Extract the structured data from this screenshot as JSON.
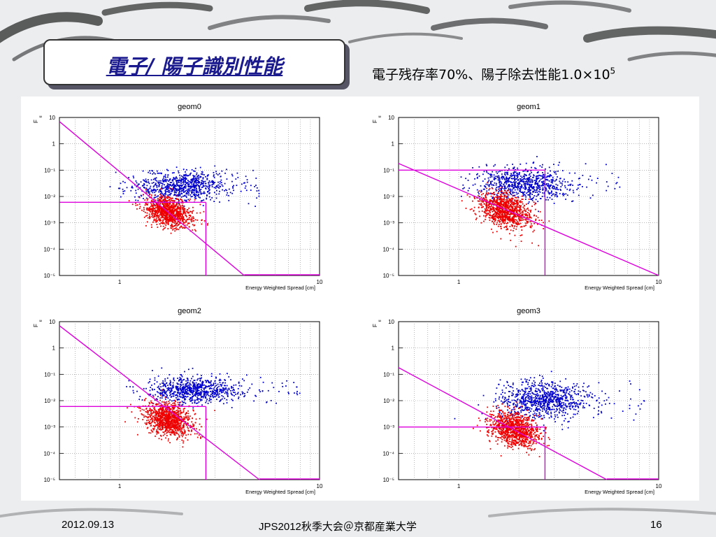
{
  "slide": {
    "title": "電子/ 陽子識別性能",
    "subtitle_main": "電子残存率70%、陽子除去性能1.0×10",
    "subtitle_exp": "5",
    "footer_date": "2012.09.13",
    "footer_event": "JPS2012秋季大会＠京都産業大学",
    "footer_page": "16"
  },
  "colors": {
    "electron": "#ee0000",
    "proton": "#0000cc",
    "cut_line": "#dd00dd",
    "title": "#1a1a8e"
  },
  "chart_data": [
    {
      "type": "scatter",
      "title": "geom0",
      "xlabel": "Energy Weighted Spread [cm]",
      "ylabel": "F",
      "ylabel_sub": "tl",
      "xscale": "log",
      "yscale": "log",
      "xlim": [
        0.5,
        10
      ],
      "ylim": [
        1e-05,
        10
      ],
      "x_tick_labels": [
        "1",
        "10"
      ],
      "y_tick_labels": [
        "10",
        "1",
        "10⁻¹",
        "10⁻²",
        "10⁻³",
        "10⁻⁴",
        "10⁻⁵"
      ],
      "grid": true,
      "series": [
        {
          "color": "#0000cc",
          "x_center": 2.0,
          "y_center": 0.025,
          "x_spread": 0.22,
          "y_spread": 0.28,
          "n": 800,
          "tail_x_max": 5.0
        },
        {
          "color": "#ee0000",
          "x_center": 1.75,
          "y_center": 0.0025,
          "x_spread": 0.12,
          "y_spread": 0.28,
          "n": 1000,
          "tail_x_max": 2.2
        }
      ],
      "cut_line": {
        "x1": 0.5,
        "y1": 7,
        "x2": 4.2,
        "y2": 1e-05
      },
      "cut_line_tail": {
        "x1": 4.2,
        "y1": 1e-05,
        "x2": 10,
        "y2": 1e-05
      },
      "cut_box": {
        "x_max": 2.7,
        "y_cut": 0.006
      }
    },
    {
      "type": "scatter",
      "title": "geom1",
      "xlabel": "Energy Weighted Spread [cm]",
      "ylabel": "F",
      "ylabel_sub": "tl",
      "xscale": "log",
      "yscale": "log",
      "xlim": [
        0.5,
        10
      ],
      "ylim": [
        1e-05,
        10
      ],
      "x_tick_labels": [
        "1",
        "10"
      ],
      "y_tick_labels": [
        "10",
        "1",
        "10⁻¹",
        "10⁻²",
        "10⁻³",
        "10⁻⁴",
        "10⁻⁵"
      ],
      "grid": true,
      "series": [
        {
          "color": "#0000cc",
          "x_center": 2.1,
          "y_center": 0.03,
          "x_spread": 0.22,
          "y_spread": 0.3,
          "n": 800,
          "tail_x_max": 6.5
        },
        {
          "color": "#ee0000",
          "x_center": 1.7,
          "y_center": 0.003,
          "x_spread": 0.13,
          "y_spread": 0.32,
          "n": 1000,
          "tail_x_max": 2.2
        }
      ],
      "cut_line": {
        "x1": 0.5,
        "y1": 0.18,
        "x2": 10,
        "y2": 1e-05
      },
      "cut_box": {
        "x_max": 2.7,
        "y_cut": 0.1
      },
      "box_top_only": true
    },
    {
      "type": "scatter",
      "title": "geom2",
      "xlabel": "Energy Weighted Spread [cm]",
      "ylabel": "F",
      "ylabel_sub": "tl",
      "xscale": "log",
      "yscale": "log",
      "xlim": [
        0.5,
        10
      ],
      "ylim": [
        1e-05,
        10
      ],
      "x_tick_labels": [
        "1",
        "10"
      ],
      "y_tick_labels": [
        "10",
        "1",
        "10⁻¹",
        "10⁻²",
        "10⁻³",
        "10⁻⁴",
        "10⁻⁵"
      ],
      "grid": true,
      "series": [
        {
          "color": "#0000cc",
          "x_center": 2.3,
          "y_center": 0.025,
          "x_spread": 0.22,
          "y_spread": 0.25,
          "n": 800,
          "tail_x_max": 8.0
        },
        {
          "color": "#ee0000",
          "x_center": 1.75,
          "y_center": 0.002,
          "x_spread": 0.12,
          "y_spread": 0.3,
          "n": 1000,
          "tail_x_max": 2.2
        }
      ],
      "cut_line": {
        "x1": 0.5,
        "y1": 7,
        "x2": 5.0,
        "y2": 1e-05
      },
      "cut_line_tail": {
        "x1": 5.0,
        "y1": 1e-05,
        "x2": 10,
        "y2": 1e-05
      },
      "cut_box": {
        "x_max": 2.7,
        "y_cut": 0.006
      }
    },
    {
      "type": "scatter",
      "title": "geom3",
      "xlabel": "Energy Weighted Spread [cm]",
      "ylabel": "F",
      "ylabel_sub": "tl",
      "xscale": "log",
      "yscale": "log",
      "xlim": [
        0.5,
        10
      ],
      "ylim": [
        1e-05,
        10
      ],
      "x_tick_labels": [
        "1",
        "10"
      ],
      "y_tick_labels": [
        "10",
        "1",
        "10⁻¹",
        "10⁻²",
        "10⁻³",
        "10⁻⁴",
        "10⁻⁵"
      ],
      "grid": true,
      "series": [
        {
          "color": "#0000cc",
          "x_center": 2.6,
          "y_center": 0.01,
          "x_spread": 0.22,
          "y_spread": 0.35,
          "n": 900,
          "tail_x_max": 8.5
        },
        {
          "color": "#ee0000",
          "x_center": 1.9,
          "y_center": 0.0008,
          "x_spread": 0.12,
          "y_spread": 0.32,
          "n": 1000,
          "tail_x_max": 2.7
        }
      ],
      "cut_line": {
        "x1": 0.5,
        "y1": 0.18,
        "x2": 5.5,
        "y2": 1e-05
      },
      "cut_line_tail": {
        "x1": 5.5,
        "y1": 1e-05,
        "x2": 10,
        "y2": 1e-05
      },
      "cut_box": {
        "x_max": 2.7,
        "y_cut": 0.001
      }
    }
  ]
}
